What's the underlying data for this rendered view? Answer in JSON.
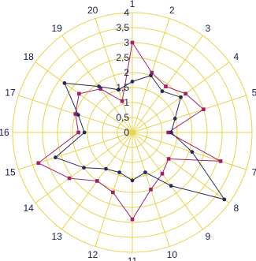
{
  "chart_data": {
    "type": "radar",
    "categories": [
      "1",
      "2",
      "3",
      "4",
      "5",
      "6",
      "7",
      "8",
      "9",
      "10",
      "11",
      "12",
      "13",
      "14",
      "15",
      "16",
      "17",
      "18",
      "19",
      "20"
    ],
    "r_ticks": [
      "0",
      "0,5",
      "1",
      "1,5",
      "2",
      "2,5",
      "3",
      "3,5",
      "4"
    ],
    "r_range": [
      0,
      4
    ],
    "grid": true,
    "legend": "none",
    "series": [
      {
        "color": "#a0206a",
        "marker": "square",
        "values": [
          3.0,
          2.1,
          1.9,
          2.2,
          2.5,
          1.2,
          3.1,
          1.5,
          1.7,
          2.0,
          2.9,
          2.1,
          2.0,
          2.6,
          3.3,
          1.8,
          2.0,
          2.2,
          1.8,
          1.1
        ]
      },
      {
        "color": "#2a2a55",
        "marker": "circle",
        "values": [
          1.7,
          2.0,
          1.7,
          2.0,
          1.5,
          1.3,
          2.1,
          3.8,
          2.2,
          1.4,
          1.6,
          1.4,
          1.5,
          2.0,
          2.7,
          1.6,
          1.9,
          2.8,
          1.9,
          1.5
        ]
      }
    ]
  }
}
